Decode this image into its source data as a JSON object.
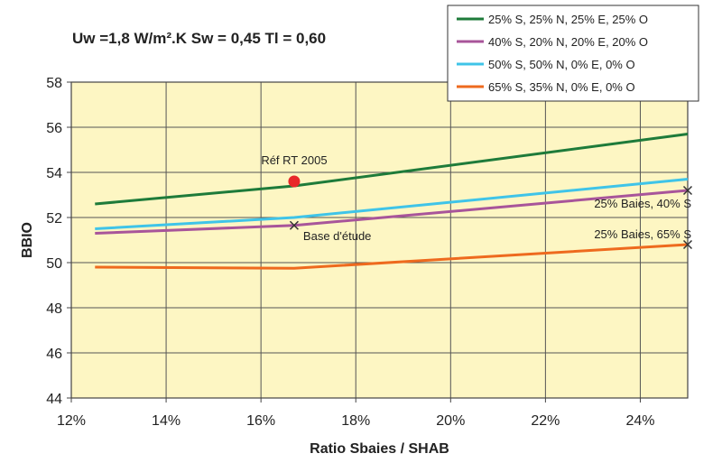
{
  "chart_data": {
    "type": "line",
    "subtitle": "Uw =1,8 W/m².K Sw = 0,45 Tl = 0,60",
    "xlabel": "Ratio Sbaies / SHAB",
    "ylabel": "BBIO",
    "xlim": [
      0.12,
      0.25
    ],
    "ylim": [
      44,
      58
    ],
    "x_ticks": [
      {
        "value": 0.12,
        "label": "12%"
      },
      {
        "value": 0.14,
        "label": "14%"
      },
      {
        "value": 0.16,
        "label": "16%"
      },
      {
        "value": 0.18,
        "label": "18%"
      },
      {
        "value": 0.2,
        "label": "20%"
      },
      {
        "value": 0.22,
        "label": "22%"
      },
      {
        "value": 0.24,
        "label": "24%"
      }
    ],
    "y_ticks": [
      {
        "value": 44,
        "label": "44"
      },
      {
        "value": 46,
        "label": "46"
      },
      {
        "value": 48,
        "label": "48"
      },
      {
        "value": 50,
        "label": "50"
      },
      {
        "value": 52,
        "label": "52"
      },
      {
        "value": 54,
        "label": "54"
      },
      {
        "value": 56,
        "label": "56"
      },
      {
        "value": 58,
        "label": "58"
      }
    ],
    "grid": true,
    "legend_position": "top-right",
    "plot_background": "#fdf6c3",
    "series": [
      {
        "name": "25% S, 25% N, 25% E, 25% O",
        "color": "#1e7b3a",
        "x": [
          0.125,
          0.167,
          0.25
        ],
        "y": [
          52.6,
          53.4,
          55.7
        ]
      },
      {
        "name": "40% S, 20% N, 20% E, 20% O",
        "color": "#a8559a",
        "x": [
          0.125,
          0.167,
          0.25
        ],
        "y": [
          51.3,
          51.65,
          53.2
        ]
      },
      {
        "name": "50% S, 50% N, 0% E, 0% O",
        "color": "#3fc4e8",
        "x": [
          0.125,
          0.167,
          0.25
        ],
        "y": [
          51.5,
          52.0,
          53.7
        ]
      },
      {
        "name": "65% S, 35% N, 0% E, 0% O",
        "color": "#ee6a1e",
        "x": [
          0.125,
          0.167,
          0.25
        ],
        "y": [
          49.8,
          49.75,
          50.8
        ]
      }
    ],
    "markers": [
      {
        "name": "ref-rt-2005-marker",
        "shape": "dot",
        "color": "#e8282a",
        "x": 0.167,
        "y": 53.6
      },
      {
        "name": "base-etude-marker",
        "shape": "cross",
        "color": "#333333",
        "x": 0.167,
        "y": 51.65
      },
      {
        "name": "baies-40-marker",
        "shape": "cross",
        "color": "#333333",
        "x": 0.25,
        "y": 53.2
      },
      {
        "name": "baies-65-marker",
        "shape": "cross",
        "color": "#333333",
        "x": 0.25,
        "y": 50.8
      }
    ],
    "annotations": [
      {
        "name": "ref-rt-2005-label",
        "text": "Réf RT 2005",
        "x": 0.167,
        "y": 53.6,
        "placement": "above"
      },
      {
        "name": "base-etude-label",
        "text": "Base d'étude",
        "x": 0.167,
        "y": 51.65,
        "placement": "below-right"
      },
      {
        "name": "baies-40-label",
        "text": "25% Baies, 40% S",
        "x": 0.25,
        "y": 53.2,
        "placement": "below-left"
      },
      {
        "name": "baies-65-label",
        "text": "25% Baies, 65% S",
        "x": 0.25,
        "y": 50.8,
        "placement": "above-left"
      }
    ]
  }
}
